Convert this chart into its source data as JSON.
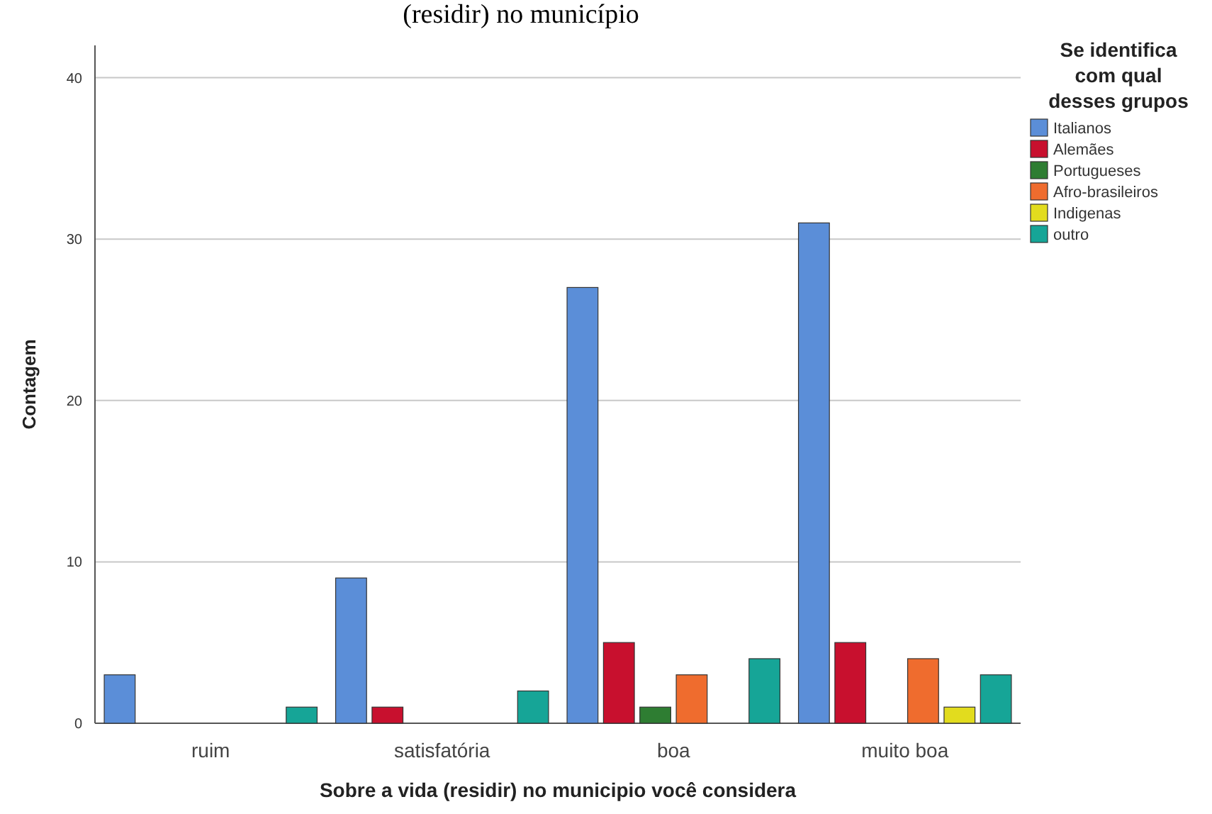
{
  "chart_data": {
    "type": "bar",
    "title": "(residir) no município",
    "xlabel": "Sobre a vida (residir) no municipio você considera",
    "ylabel": "Contagem",
    "legend_title": "Se identifica com qual desses grupos",
    "categories": [
      "ruim",
      "satisfatória",
      "boa",
      "muito boa"
    ],
    "series": [
      {
        "name": "Italianos",
        "color": "#5b8ed8",
        "values": [
          3,
          9,
          27,
          31
        ]
      },
      {
        "name": "Alemães",
        "color": "#c8102e",
        "values": [
          0,
          1,
          5,
          5
        ]
      },
      {
        "name": "Portugueses",
        "color": "#2e7d32",
        "values": [
          0,
          0,
          1,
          0
        ]
      },
      {
        "name": "Afro-brasileiros",
        "color": "#ef6c2e",
        "values": [
          0,
          0,
          3,
          4
        ]
      },
      {
        "name": "Indigenas",
        "color": "#e2dc1e",
        "values": [
          0,
          0,
          0,
          1
        ]
      },
      {
        "name": "outro",
        "color": "#16a597",
        "values": [
          1,
          2,
          4,
          3
        ]
      }
    ],
    "ylim": [
      0,
      42
    ],
    "yticks": [
      0,
      10,
      20,
      30,
      40
    ],
    "grid": "y",
    "legend": "right"
  }
}
